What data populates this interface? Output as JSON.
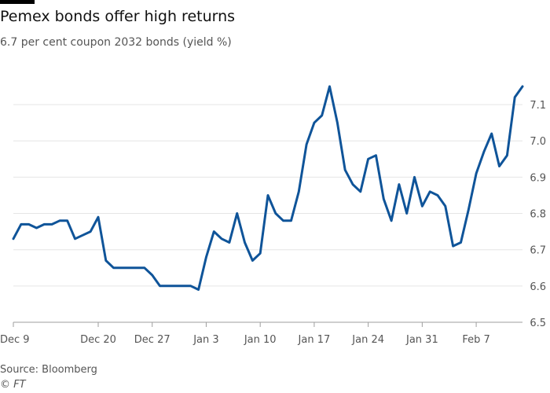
{
  "header": {
    "title": "Pemex bonds offer high returns",
    "subtitle": "6.7 per cent coupon 2032 bonds (yield %)"
  },
  "footer": {
    "source": "Source: Bloomberg",
    "credit": "© FT"
  },
  "chart_data": {
    "type": "line",
    "title": "Pemex bonds offer high returns",
    "subtitle": "6.7 per cent coupon 2032 bonds (yield %)",
    "xlabel": "",
    "ylabel": "",
    "x_ticks": [
      "Dec 9",
      "Dec 20",
      "Dec 27",
      "Jan 3",
      "Jan 10",
      "Jan 17",
      "Jan 24",
      "Jan 31",
      "Feb 7"
    ],
    "x_tick_dates": [
      "2021-12-09",
      "2021-12-20",
      "2021-12-27",
      "2022-01-03",
      "2022-01-10",
      "2022-01-17",
      "2022-01-24",
      "2022-01-31",
      "2022-02-07"
    ],
    "x_range": [
      "2021-12-09",
      "2022-02-13"
    ],
    "y_ticks": [
      6.5,
      6.6,
      6.7,
      6.8,
      6.9,
      7.0,
      7.1
    ],
    "ylim": [
      6.5,
      7.15
    ],
    "grid": true,
    "line_color": "#0f5499",
    "series": [
      {
        "values": [
          [
            "2021-12-09",
            6.73
          ],
          [
            "2021-12-10",
            6.77
          ],
          [
            "2021-12-11",
            6.77
          ],
          [
            "2021-12-12",
            6.76
          ],
          [
            "2021-12-13",
            6.77
          ],
          [
            "2021-12-14",
            6.77
          ],
          [
            "2021-12-15",
            6.78
          ],
          [
            "2021-12-16",
            6.78
          ],
          [
            "2021-12-17",
            6.73
          ],
          [
            "2021-12-18",
            6.74
          ],
          [
            "2021-12-19",
            6.75
          ],
          [
            "2021-12-20",
            6.79
          ],
          [
            "2021-12-21",
            6.67
          ],
          [
            "2021-12-22",
            6.65
          ],
          [
            "2021-12-23",
            6.65
          ],
          [
            "2021-12-24",
            6.65
          ],
          [
            "2021-12-25",
            6.65
          ],
          [
            "2021-12-26",
            6.65
          ],
          [
            "2021-12-27",
            6.63
          ],
          [
            "2021-12-28",
            6.6
          ],
          [
            "2021-12-29",
            6.6
          ],
          [
            "2021-12-30",
            6.6
          ],
          [
            "2021-12-31",
            6.6
          ],
          [
            "2022-01-01",
            6.6
          ],
          [
            "2022-01-02",
            6.59
          ],
          [
            "2022-01-03",
            6.68
          ],
          [
            "2022-01-04",
            6.75
          ],
          [
            "2022-01-05",
            6.73
          ],
          [
            "2022-01-06",
            6.72
          ],
          [
            "2022-01-07",
            6.8
          ],
          [
            "2022-01-08",
            6.72
          ],
          [
            "2022-01-09",
            6.67
          ],
          [
            "2022-01-10",
            6.69
          ],
          [
            "2022-01-11",
            6.85
          ],
          [
            "2022-01-12",
            6.8
          ],
          [
            "2022-01-13",
            6.78
          ],
          [
            "2022-01-14",
            6.78
          ],
          [
            "2022-01-15",
            6.86
          ],
          [
            "2022-01-16",
            6.99
          ],
          [
            "2022-01-17",
            7.05
          ],
          [
            "2022-01-18",
            7.07
          ],
          [
            "2022-01-19",
            7.15
          ],
          [
            "2022-01-20",
            7.05
          ],
          [
            "2022-01-21",
            6.92
          ],
          [
            "2022-01-22",
            6.88
          ],
          [
            "2022-01-23",
            6.86
          ],
          [
            "2022-01-24",
            6.95
          ],
          [
            "2022-01-25",
            6.96
          ],
          [
            "2022-01-26",
            6.84
          ],
          [
            "2022-01-27",
            6.78
          ],
          [
            "2022-01-28",
            6.88
          ],
          [
            "2022-01-29",
            6.8
          ],
          [
            "2022-01-30",
            6.9
          ],
          [
            "2022-01-31",
            6.82
          ],
          [
            "2022-02-01",
            6.86
          ],
          [
            "2022-02-02",
            6.85
          ],
          [
            "2022-02-03",
            6.82
          ],
          [
            "2022-02-04",
            6.71
          ],
          [
            "2022-02-05",
            6.72
          ],
          [
            "2022-02-06",
            6.81
          ],
          [
            "2022-02-07",
            6.91
          ],
          [
            "2022-02-08",
            6.97
          ],
          [
            "2022-02-09",
            7.02
          ],
          [
            "2022-02-10",
            6.93
          ],
          [
            "2022-02-11",
            6.96
          ],
          [
            "2022-02-12",
            7.12
          ],
          [
            "2022-02-13",
            7.15
          ]
        ]
      }
    ]
  }
}
